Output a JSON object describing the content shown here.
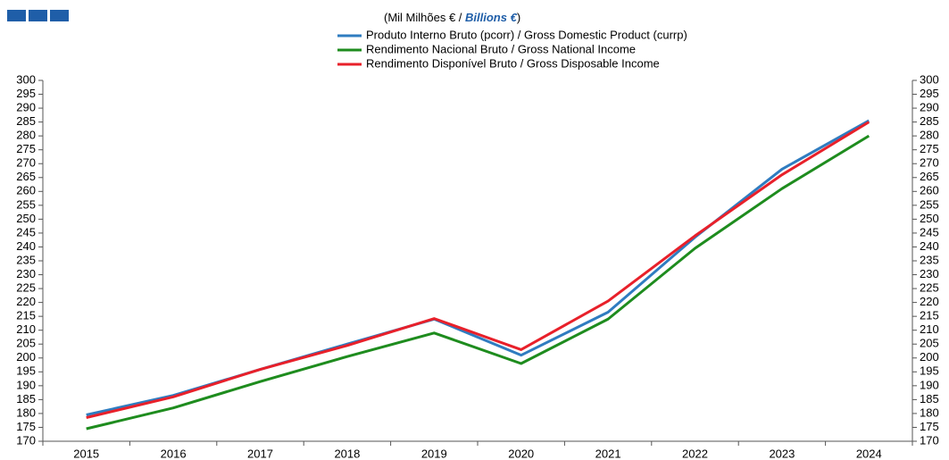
{
  "chart_data": {
    "type": "line",
    "title": "(Mil Milhões  € / ",
    "title_highlight": "Billions €",
    "title_end": ")",
    "categories": [
      "2015",
      "2016",
      "2017",
      "2018",
      "2019",
      "2020",
      "2021",
      "2022",
      "2023",
      "2024"
    ],
    "series": [
      {
        "name": "Produto Interno Bruto (pcorr) / Gross Domestic Product (currp)",
        "color": "#2f7cc0",
        "values": [
          179.5,
          186.5,
          195.9,
          205,
          214,
          201,
          216.5,
          243.5,
          268,
          285.5
        ]
      },
      {
        "name": "Rendimento Nacional Bruto / Gross National Income",
        "color": "#1e8c1e",
        "values": [
          174.5,
          182,
          191.5,
          200.5,
          209,
          198,
          214,
          239.5,
          261,
          280
        ]
      },
      {
        "name": "Rendimento Disponível Bruto / Gross Disposable Income",
        "color": "#e8202a",
        "values": [
          178.5,
          186,
          195.9,
          204.5,
          214.2,
          203,
          220.5,
          244,
          266,
          285
        ]
      }
    ],
    "ylim": [
      170,
      300
    ],
    "yticks": [
      170,
      175,
      180,
      185,
      190,
      195,
      200,
      205,
      210,
      215,
      220,
      225,
      230,
      235,
      240,
      245,
      250,
      255,
      260,
      265,
      270,
      275,
      280,
      285,
      290,
      295,
      300
    ],
    "y2lim": [
      170,
      300
    ],
    "y2ticks": [
      170,
      175,
      180,
      185,
      190,
      195,
      200,
      205,
      210,
      215,
      220,
      225,
      230,
      235,
      240,
      245,
      250,
      255,
      260,
      265,
      270,
      275,
      280,
      285,
      290,
      295,
      300
    ],
    "grid": false
  }
}
